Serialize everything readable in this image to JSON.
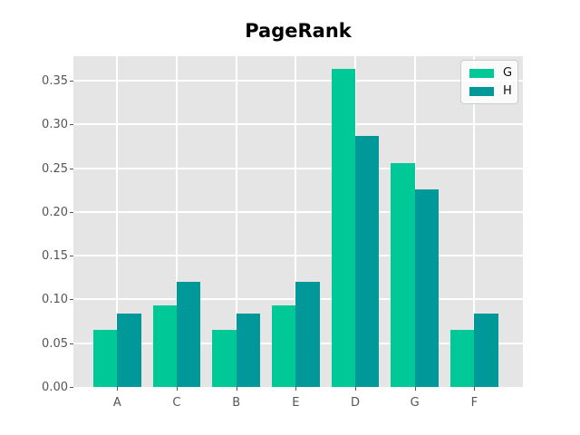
{
  "title": "PageRank",
  "colors": {
    "series_g": "#00c896",
    "series_h": "#009898",
    "plot_background": "#e5e5e5",
    "gridline": "#ffffff",
    "tick_text": "#555555",
    "title_text": "#000000"
  },
  "chart_data": {
    "type": "bar",
    "title": "PageRank",
    "categories": [
      "A",
      "C",
      "B",
      "E",
      "D",
      "G",
      "F"
    ],
    "series": [
      {
        "name": "G",
        "color": "#00c896",
        "values": [
          0.065,
          0.093,
          0.065,
          0.093,
          0.363,
          0.256,
          0.065
        ]
      },
      {
        "name": "H",
        "color": "#009898",
        "values": [
          0.084,
          0.12,
          0.084,
          0.12,
          0.287,
          0.226,
          0.084
        ]
      }
    ],
    "xlabel": "",
    "ylabel": "",
    "ylim": [
      0,
      0.378
    ],
    "yticks": [
      0.0,
      0.05,
      0.1,
      0.15,
      0.2,
      0.25,
      0.3,
      0.35
    ],
    "ytick_format": "2dp",
    "grid": true,
    "legend_position": "upper right"
  }
}
